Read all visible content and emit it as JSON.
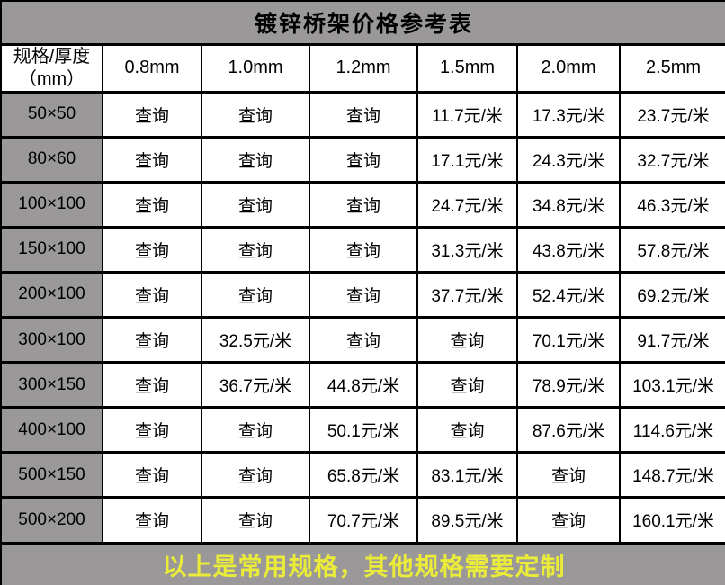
{
  "title": "镀锌桥架价格参考表",
  "footer_note": "以上是常用规格，其他规格需要定制",
  "colors": {
    "band_bg": "#9a9898",
    "cell_bg": "#ffffff",
    "border": "#000000",
    "price_text": "#fe0000",
    "query_text": "#000000",
    "title_text": "#000000",
    "footer_text": "#ebeb3a"
  },
  "table": {
    "corner_header": "规格/厚度\n（mm）",
    "column_headers": [
      "0.8mm",
      "1.0mm",
      "1.2mm",
      "1.5mm",
      "2.0mm",
      "2.5mm"
    ],
    "query_label": "查询",
    "rows": [
      {
        "spec": "50×50",
        "values": [
          "查询",
          "查询",
          "查询",
          "11.7元/米",
          "17.3元/米",
          "23.7元/米"
        ]
      },
      {
        "spec": "80×60",
        "values": [
          "查询",
          "查询",
          "查询",
          "17.1元/米",
          "24.3元/米",
          "32.7元/米"
        ]
      },
      {
        "spec": "100×100",
        "values": [
          "查询",
          "查询",
          "查询",
          "24.7元/米",
          "34.8元/米",
          "46.3元/米"
        ]
      },
      {
        "spec": "150×100",
        "values": [
          "查询",
          "查询",
          "查询",
          "31.3元/米",
          "43.8元/米",
          "57.8元/米"
        ]
      },
      {
        "spec": "200×100",
        "values": [
          "查询",
          "查询",
          "查询",
          "37.7元/米",
          "52.4元/米",
          "69.2元/米"
        ]
      },
      {
        "spec": "300×100",
        "values": [
          "查询",
          "32.5元/米",
          "查询",
          "查询",
          "70.1元/米",
          "91.7元/米"
        ]
      },
      {
        "spec": "300×150",
        "values": [
          "查询",
          "36.7元/米",
          "44.8元/米",
          "查询",
          "78.9元/米",
          "103.1元/米"
        ]
      },
      {
        "spec": "400×100",
        "values": [
          "查询",
          "查询",
          "50.1元/米",
          "查询",
          "87.6元/米",
          "114.6元/米"
        ]
      },
      {
        "spec": "500×150",
        "values": [
          "查询",
          "查询",
          "65.8元/米",
          "83.1元/米",
          "查询",
          "148.7元/米"
        ]
      },
      {
        "spec": "500×200",
        "values": [
          "查询",
          "查询",
          "70.7元/米",
          "89.5元/米",
          "查询",
          "160.1元/米"
        ]
      }
    ]
  },
  "chart_data": {
    "type": "table",
    "title": "镀锌桥架价格参考表",
    "columns": [
      "规格/厚度（mm）",
      "0.8mm",
      "1.0mm",
      "1.2mm",
      "1.5mm",
      "2.0mm",
      "2.5mm"
    ],
    "rows": [
      [
        "50×50",
        "查询",
        "查询",
        "查询",
        "11.7元/米",
        "17.3元/米",
        "23.7元/米"
      ],
      [
        "80×60",
        "查询",
        "查询",
        "查询",
        "17.1元/米",
        "24.3元/米",
        "32.7元/米"
      ],
      [
        "100×100",
        "查询",
        "查询",
        "查询",
        "24.7元/米",
        "34.8元/米",
        "46.3元/米"
      ],
      [
        "150×100",
        "查询",
        "查询",
        "查询",
        "31.3元/米",
        "43.8元/米",
        "57.8元/米"
      ],
      [
        "200×100",
        "查询",
        "查询",
        "查询",
        "37.7元/米",
        "52.4元/米",
        "69.2元/米"
      ],
      [
        "300×100",
        "查询",
        "32.5元/米",
        "查询",
        "查询",
        "70.1元/米",
        "91.7元/米"
      ],
      [
        "300×150",
        "查询",
        "36.7元/米",
        "44.8元/米",
        "查询",
        "78.9元/米",
        "103.1元/米"
      ],
      [
        "400×100",
        "查询",
        "查询",
        "50.1元/米",
        "查询",
        "87.6元/米",
        "114.6元/米"
      ],
      [
        "500×150",
        "查询",
        "查询",
        "65.8元/米",
        "83.1元/米",
        "查询",
        "148.7元/米"
      ],
      [
        "500×200",
        "查询",
        "查询",
        "70.7元/米",
        "89.5元/米",
        "查询",
        "160.1元/米"
      ]
    ],
    "footnote": "以上是常用规格，其他规格需要定制",
    "price_unit": "元/米"
  }
}
